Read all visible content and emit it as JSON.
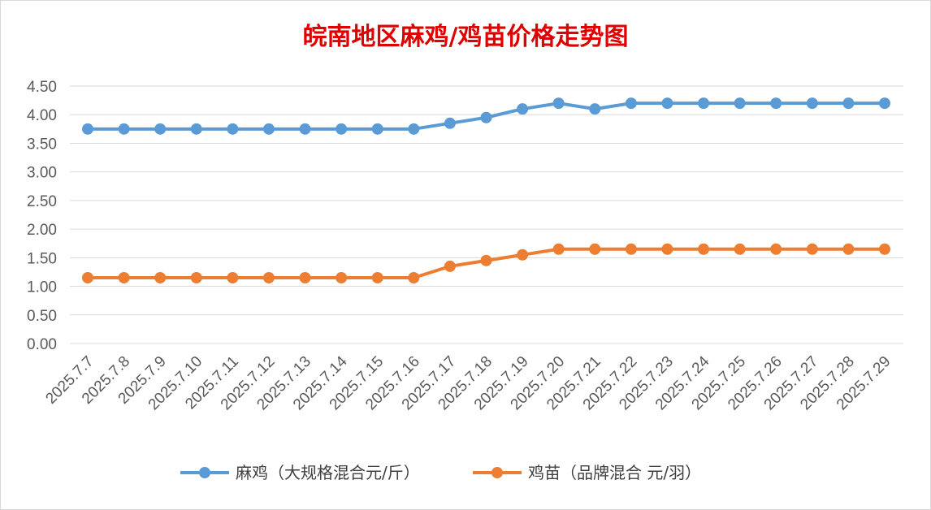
{
  "chart_data": {
    "type": "line",
    "title": "皖南地区麻鸡/鸡苗价格走势图",
    "xlabel": "",
    "ylabel": "",
    "ylim": [
      0,
      4.5
    ],
    "ytick_step": 0.5,
    "yticks": [
      "0.00",
      "0.50",
      "1.00",
      "1.50",
      "2.00",
      "2.50",
      "3.00",
      "3.50",
      "4.00",
      "4.50"
    ],
    "grid": true,
    "legend_position": "bottom",
    "categories": [
      "2025.7.7",
      "2025.7.8",
      "2025.7.9",
      "2025.7.10",
      "2025.7.11",
      "2025.7.12",
      "2025.7.13",
      "2025.7.14",
      "2025.7.15",
      "2025.7.16",
      "2025.7.17",
      "2025.7.18",
      "2025.7.19",
      "2025.7.20",
      "2025.7.21",
      "2025.7.22",
      "2025.7.23",
      "2025.7.24",
      "2025.7.25",
      "2025.7.26",
      "2025.7.27",
      "2025.7.28",
      "2025.7.29"
    ],
    "series": [
      {
        "name": "麻鸡（大规格混合元/斤）",
        "color": "#5b9bd5",
        "values": [
          3.75,
          3.75,
          3.75,
          3.75,
          3.75,
          3.75,
          3.75,
          3.75,
          3.75,
          3.75,
          3.85,
          3.95,
          4.1,
          4.2,
          4.1,
          4.2,
          4.2,
          4.2,
          4.2,
          4.2,
          4.2,
          4.2,
          4.2
        ]
      },
      {
        "name": "鸡苗（品牌混合 元/羽）",
        "color": "#ed7d31",
        "values": [
          1.15,
          1.15,
          1.15,
          1.15,
          1.15,
          1.15,
          1.15,
          1.15,
          1.15,
          1.15,
          1.35,
          1.45,
          1.55,
          1.65,
          1.65,
          1.65,
          1.65,
          1.65,
          1.65,
          1.65,
          1.65,
          1.65,
          1.65
        ]
      }
    ]
  }
}
